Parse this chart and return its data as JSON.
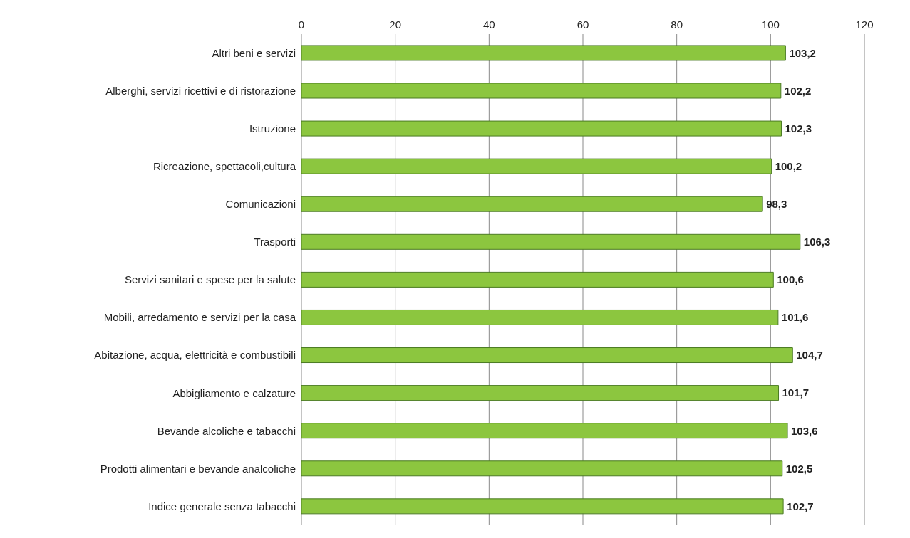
{
  "chart_data": {
    "type": "bar",
    "orientation": "horizontal",
    "categories": [
      "Altri beni e servizi",
      "Alberghi, servizi ricettivi e di ristorazione",
      "Istruzione",
      "Ricreazione, spettacoli,cultura",
      "Comunicazioni",
      "Trasporti",
      "Servizi sanitari e spese per la salute",
      "Mobili, arredamento e servizi per la casa",
      "Abitazione, acqua, elettricità e combustibili",
      "Abbigliamento e calzature",
      "Bevande alcoliche e tabacchi",
      "Prodotti alimentari e bevande analcoliche",
      "Indice generale senza tabacchi"
    ],
    "values": [
      103.2,
      102.2,
      102.3,
      100.2,
      98.3,
      106.3,
      100.6,
      101.6,
      104.7,
      101.7,
      103.6,
      102.5,
      102.7
    ],
    "value_labels": [
      "103,2",
      "102,2",
      "102,3",
      "100,2",
      "98,3",
      "106,3",
      "100,6",
      "101,6",
      "104,7",
      "101,7",
      "103,6",
      "102,5",
      "102,7"
    ],
    "color": "#8cc63f",
    "xlim": [
      0,
      120
    ],
    "xticks": [
      0,
      20,
      40,
      60,
      80,
      100,
      120
    ],
    "grid": "x",
    "legend": false
  }
}
